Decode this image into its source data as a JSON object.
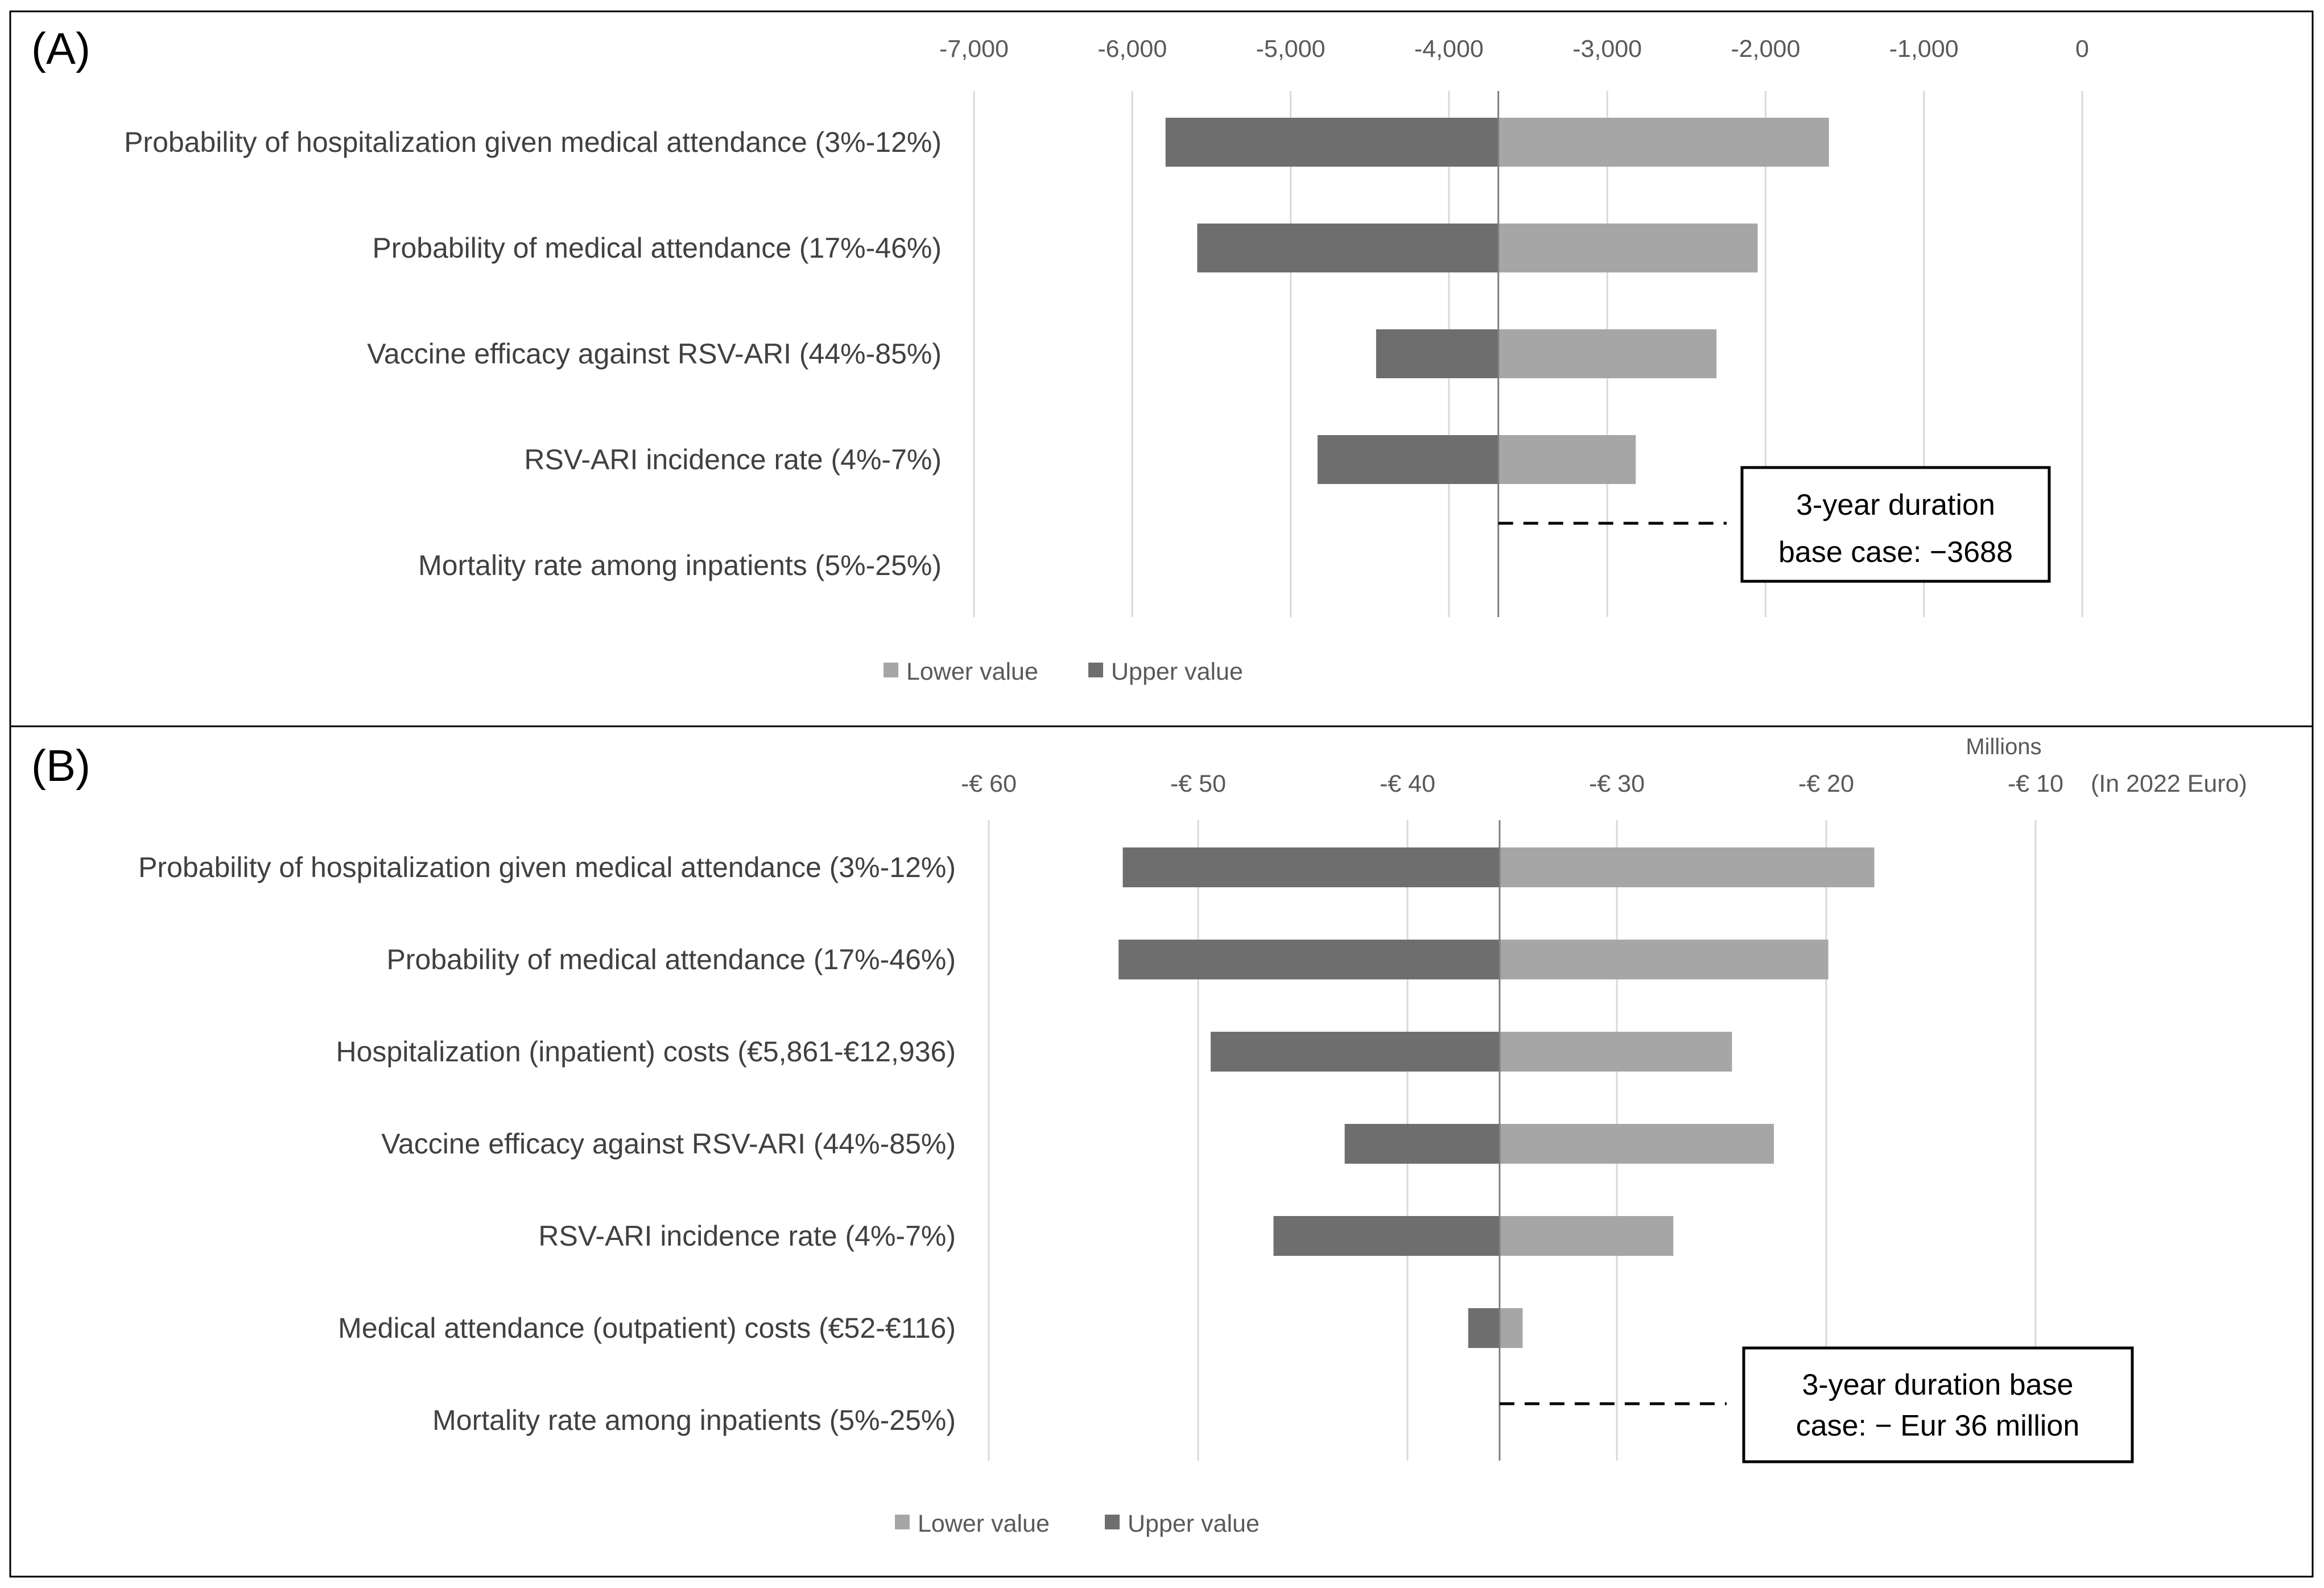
{
  "colors": {
    "lower": "#a6a6a6",
    "upper": "#6e6e6e",
    "grid": "#d9d9d9",
    "baseline": "#7f7f7f",
    "border": "#000000"
  },
  "chart_data": [
    {
      "type": "bar",
      "panel_label": "(A)",
      "orientation": "horizontal tornado",
      "base_case": -3688,
      "xlim": [
        -7000,
        0
      ],
      "x_ticks": [
        -7000,
        -6000,
        -5000,
        -4000,
        -3000,
        -2000,
        -1000,
        0
      ],
      "x_tick_labels": [
        "-7,000",
        "-6,000",
        "-5,000",
        "-4,000",
        "-3,000",
        "-2,000",
        "-1,000",
        "0"
      ],
      "axis_position": "top",
      "categories": [
        "Probability of hospitalization given medical attendance (3%-12%)",
        "Probability of medical attendance (17%-46%)",
        "Vaccine efficacy against RSV-ARI (44%-85%)",
        "RSV-ARI incidence rate (4%-7%)",
        "Mortality rate among inpatients (5%-25%)"
      ],
      "series": [
        {
          "name": "Lower value",
          "values": [
            -1600,
            -2050,
            -2310,
            -2820,
            -3688
          ]
        },
        {
          "name": "Upper value",
          "values": [
            -5790,
            -5590,
            -4460,
            -4830,
            -3688
          ]
        }
      ],
      "legend": [
        "Lower value",
        "Upper value"
      ],
      "legend_position": "bottom",
      "annotation": [
        "3-year duration",
        "base case: −3688"
      ]
    },
    {
      "type": "bar",
      "panel_label": "(B)",
      "orientation": "horizontal tornado",
      "base_case": -35.6,
      "units_label": "Millions",
      "currency_note": "(In 2022 Euro)",
      "xlim": [
        -60,
        -10
      ],
      "x_ticks": [
        -60,
        -50,
        -40,
        -30,
        -20,
        -10
      ],
      "x_tick_labels": [
        "-€ 60",
        "-€ 50",
        "-€ 40",
        "-€ 30",
        "-€ 20",
        "-€ 10"
      ],
      "axis_position": "top",
      "categories": [
        "Probability of hospitalization given medical attendance (3%-12%)",
        "Probability of medical attendance (17%-46%)",
        "Hospitalization (inpatient) costs (€5,861-€12,936)",
        "Vaccine efficacy against RSV-ARI (44%-85%)",
        "RSV-ARI incidence rate (4%-7%)",
        "Medical attendance (outpatient) costs (€52-€116)",
        "Mortality rate among inpatients (5%-25%)"
      ],
      "series": [
        {
          "name": "Lower value",
          "values": [
            -17.7,
            -19.9,
            -24.5,
            -22.5,
            -27.3,
            -34.5,
            -35.6
          ]
        },
        {
          "name": "Upper value",
          "values": [
            -53.6,
            -53.8,
            -49.4,
            -43.0,
            -46.4,
            -37.1,
            -35.6
          ]
        }
      ],
      "legend": [
        "Lower value",
        "Upper value"
      ],
      "legend_position": "bottom",
      "annotation": [
        "3-year duration base",
        "case: − Eur 36  million"
      ]
    }
  ]
}
